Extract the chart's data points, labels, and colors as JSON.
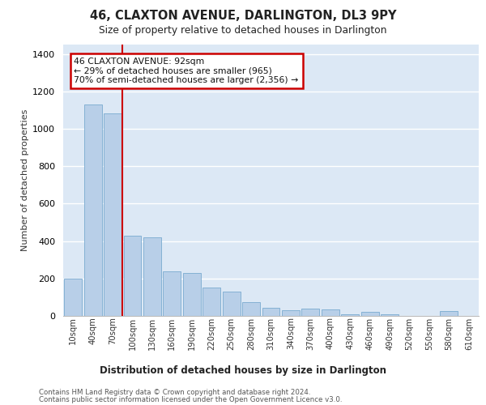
{
  "title1": "46, CLAXTON AVENUE, DARLINGTON, DL3 9PY",
  "title2": "Size of property relative to detached houses in Darlington",
  "xlabel": "Distribution of detached houses by size in Darlington",
  "ylabel": "Number of detached properties",
  "bar_color": "#b8cfe8",
  "bar_edge_color": "#7aaad0",
  "background_color": "#dce8f5",
  "categories": [
    "10sqm",
    "40sqm",
    "70sqm",
    "100sqm",
    "130sqm",
    "160sqm",
    "190sqm",
    "220sqm",
    "250sqm",
    "280sqm",
    "310sqm",
    "340sqm",
    "370sqm",
    "400sqm",
    "430sqm",
    "460sqm",
    "490sqm",
    "520sqm",
    "550sqm",
    "580sqm",
    "610sqm"
  ],
  "values": [
    200,
    1130,
    1080,
    430,
    420,
    240,
    230,
    150,
    130,
    75,
    45,
    30,
    40,
    35,
    8,
    20,
    8,
    0,
    0,
    28,
    0
  ],
  "vline_x": 2.48,
  "vline_color": "#cc0000",
  "annotation_text": "46 CLAXTON AVENUE: 92sqm\n← 29% of detached houses are smaller (965)\n70% of semi-detached houses are larger (2,356) →",
  "annotation_box_facecolor": "#ffffff",
  "annotation_box_edgecolor": "#cc0000",
  "ylim": [
    0,
    1450
  ],
  "yticks": [
    0,
    200,
    400,
    600,
    800,
    1000,
    1200,
    1400
  ],
  "footer1": "Contains HM Land Registry data © Crown copyright and database right 2024.",
  "footer2": "Contains public sector information licensed under the Open Government Licence v3.0."
}
